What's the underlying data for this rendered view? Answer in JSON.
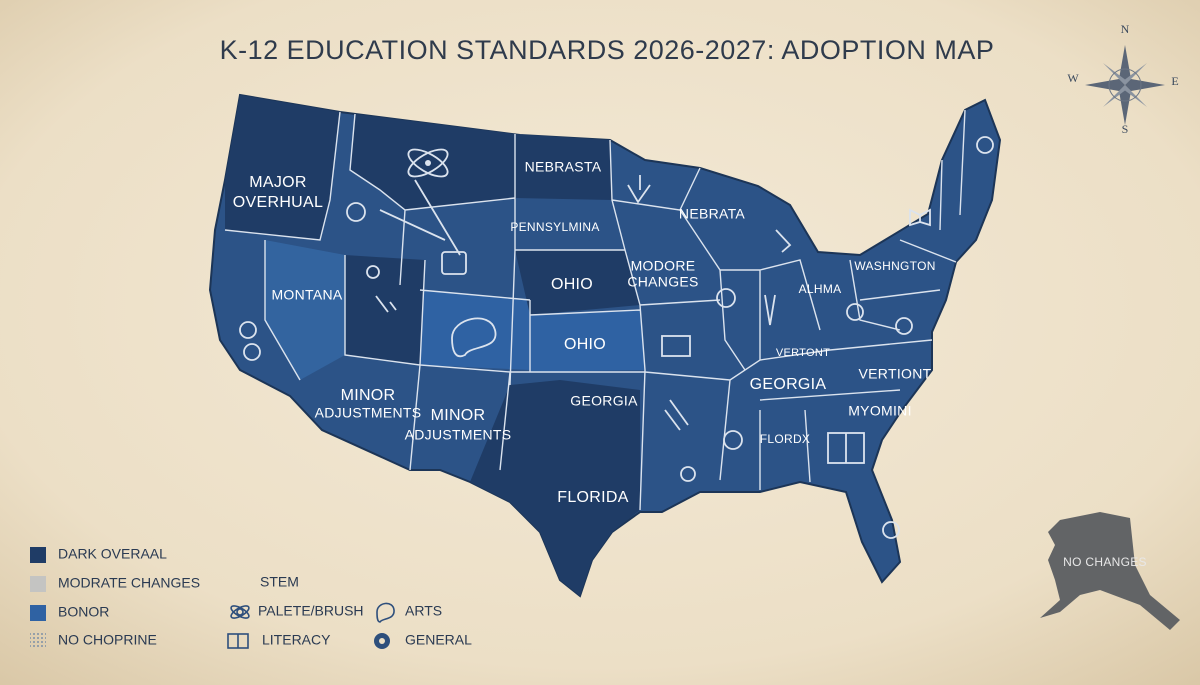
{
  "title": "K-12 EDUCATION STANDARDS 2026-2027: ADOPTION MAP",
  "compass": {
    "n": "N",
    "e": "E",
    "s": "S",
    "w": "W"
  },
  "regions": [
    {
      "lines": [
        "MAJOR",
        "OVERHUAL"
      ]
    },
    {
      "lines": [
        "NEBRASTA"
      ]
    },
    {
      "lines": [
        "PENNSYLMINA"
      ]
    },
    {
      "lines": [
        "NEBRATA"
      ]
    },
    {
      "lines": [
        "MODORE",
        "CHANGES"
      ]
    },
    {
      "lines": [
        "OHIO"
      ]
    },
    {
      "lines": [
        "MONTANA"
      ]
    },
    {
      "lines": [
        "OHIO"
      ]
    },
    {
      "lines": [
        "ALHMA"
      ]
    },
    {
      "lines": [
        "WASHNGTON"
      ]
    },
    {
      "lines": [
        "VERTONT"
      ]
    },
    {
      "lines": [
        "GEORGIA"
      ]
    },
    {
      "lines": [
        "VERTIONT"
      ]
    },
    {
      "lines": [
        "MINOR",
        "ADJUSTMENTS"
      ]
    },
    {
      "lines": [
        "MINOR",
        "ADJUSTMENTS"
      ]
    },
    {
      "lines": [
        "GEORGIA"
      ]
    },
    {
      "lines": [
        "FLORDX"
      ]
    },
    {
      "lines": [
        "MYOMINI"
      ]
    },
    {
      "lines": [
        "FLORIDA"
      ]
    },
    {
      "lines": [
        "NO CHANGES"
      ]
    }
  ],
  "legend": {
    "fills": [
      {
        "label": "DARK OVERAAL",
        "color": "#1f3c66"
      },
      {
        "label": "MODRATE CHANGES",
        "color": "#c4c4c2"
      },
      {
        "label": "BONOR",
        "color": "#2f62a3"
      },
      {
        "label": "NO CHOPRINE",
        "color": "#8a9bb0"
      }
    ],
    "icons": [
      "STEM",
      "PALETE/BRUSH",
      "ARTS",
      "LITERACY",
      "GENERAL"
    ]
  }
}
